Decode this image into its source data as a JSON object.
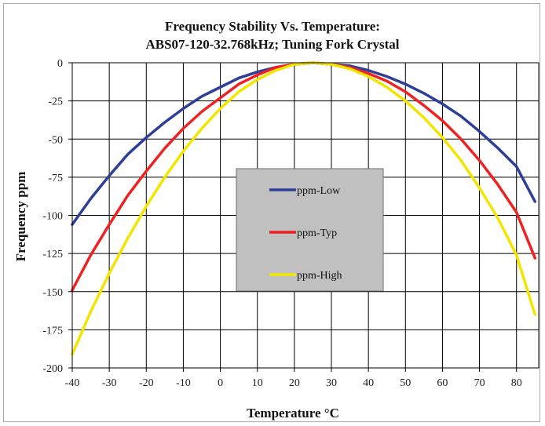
{
  "chart_data": {
    "type": "line",
    "title": "Frequency Stability Vs. Temperature:",
    "subtitle": "ABS07-120-32.768kHz; Tuning Fork Crystal",
    "xlabel": "Temperature °C",
    "ylabel": "Frequency ppm",
    "xlim": [
      -40,
      86
    ],
    "ylim": [
      -200,
      0
    ],
    "x_ticks": [
      -40,
      -30,
      -20,
      -10,
      0,
      10,
      20,
      30,
      40,
      50,
      60,
      70,
      80
    ],
    "y_ticks": [
      0,
      -25,
      -50,
      -75,
      -100,
      -125,
      -150,
      -175,
      -200
    ],
    "grid": true,
    "legend_position": "center",
    "x": [
      -40,
      -35,
      -30,
      -25,
      -20,
      -15,
      -10,
      -5,
      0,
      5,
      10,
      15,
      20,
      25,
      30,
      35,
      40,
      45,
      50,
      55,
      60,
      65,
      70,
      75,
      80,
      85
    ],
    "series": [
      {
        "name": "ppm-Low",
        "color": "#2e3f97",
        "values": [
          -106,
          -89,
          -74,
          -60,
          -49,
          -39,
          -30,
          -22,
          -16,
          -10,
          -6,
          -3,
          -1,
          0,
          -1,
          -2,
          -5,
          -9,
          -14,
          -20,
          -27,
          -35,
          -45,
          -56,
          -68,
          -91
        ]
      },
      {
        "name": "ppm-Typ",
        "color": "#ee2222",
        "values": [
          -149,
          -126,
          -106,
          -87,
          -71,
          -56,
          -43,
          -32,
          -23,
          -14,
          -8,
          -3,
          -1,
          0,
          -1,
          -3,
          -7,
          -12,
          -19,
          -28,
          -38,
          -50,
          -64,
          -80,
          -98,
          -128
        ]
      },
      {
        "name": "ppm-High",
        "color": "#f2e600",
        "values": [
          -191,
          -163,
          -138,
          -115,
          -94,
          -75,
          -58,
          -43,
          -30,
          -19,
          -11,
          -5,
          -1,
          0,
          -1,
          -4,
          -9,
          -16,
          -25,
          -36,
          -49,
          -64,
          -82,
          -102,
          -126,
          -165
        ]
      }
    ]
  }
}
